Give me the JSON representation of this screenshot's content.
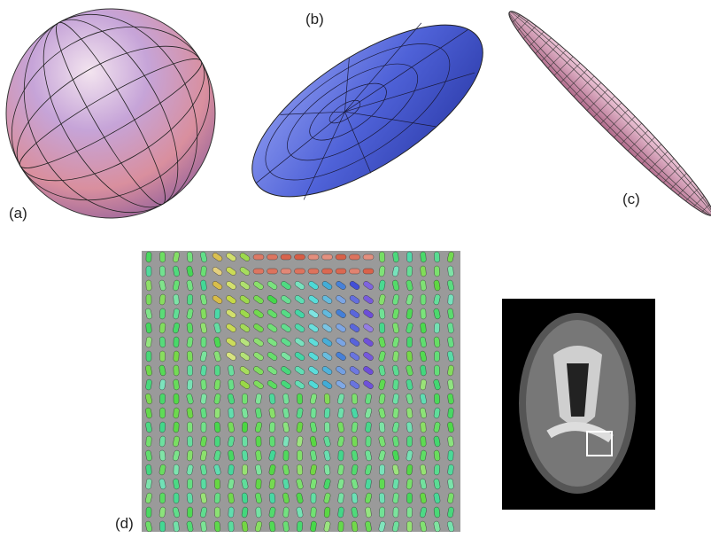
{
  "labels": {
    "a": "(a)",
    "b": "(b)",
    "c": "(c)",
    "d": "(d)"
  }
}
